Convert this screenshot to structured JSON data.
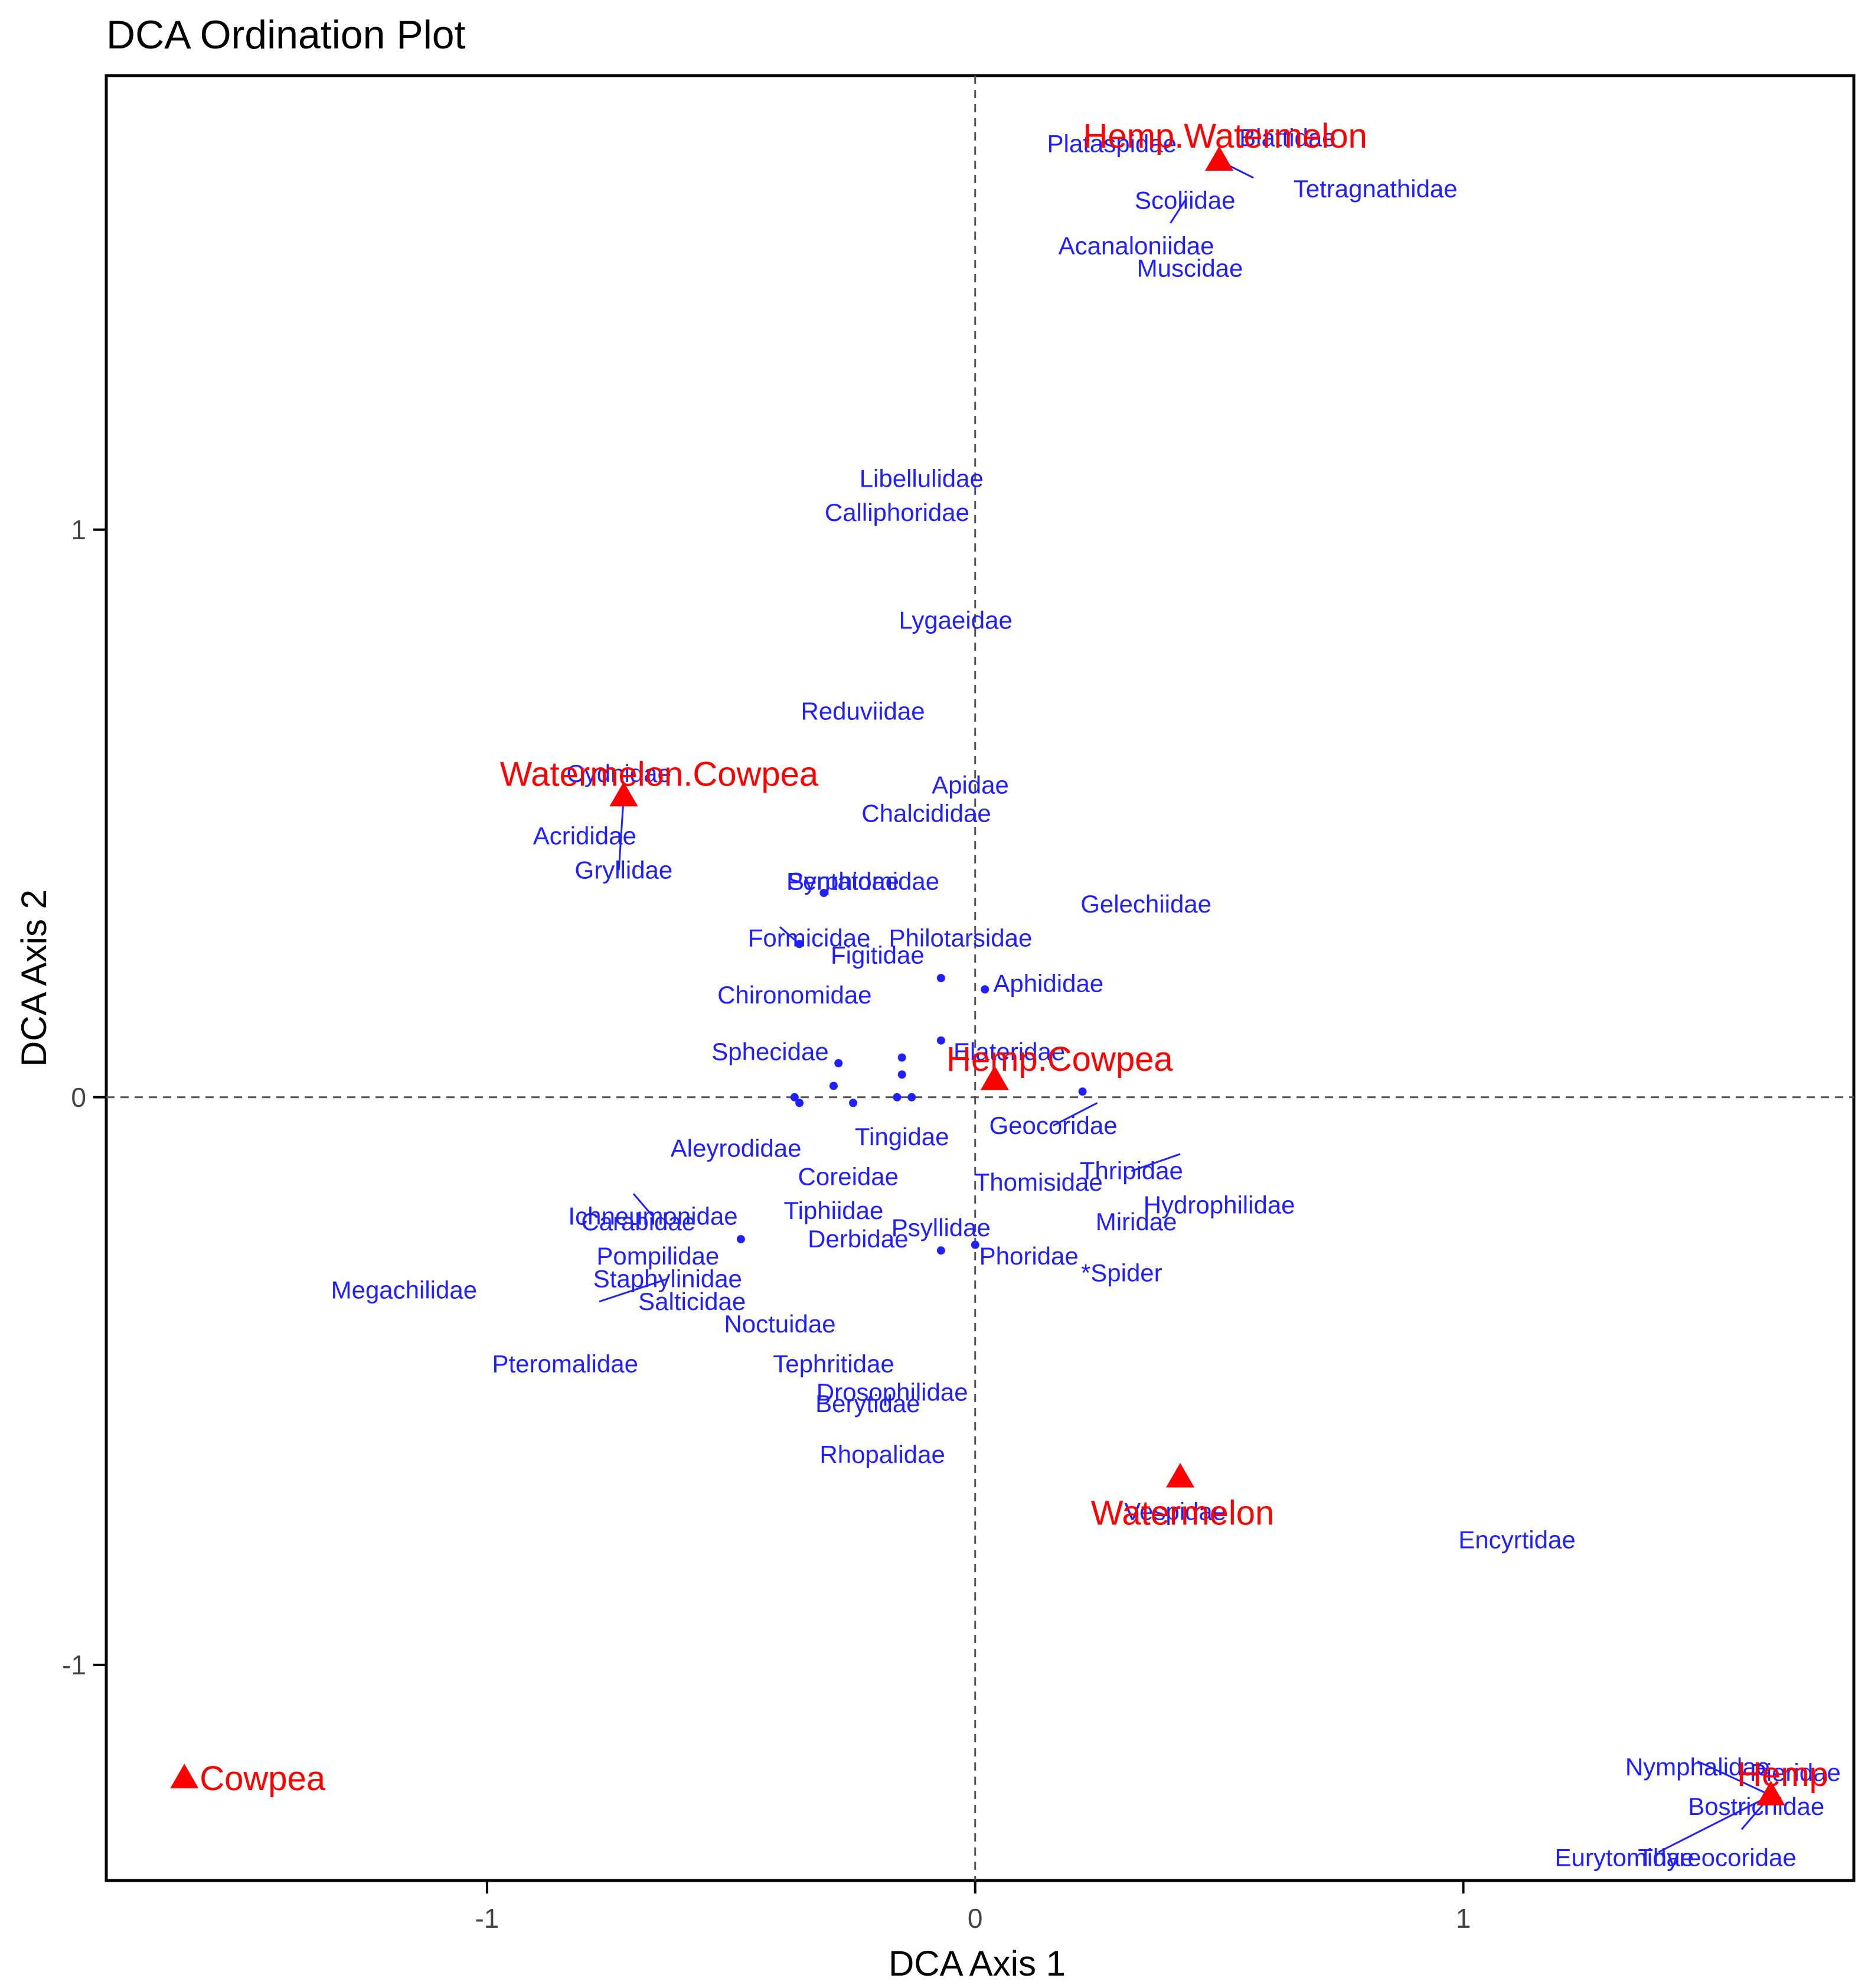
{
  "chart_data": {
    "type": "scatter",
    "title": "DCA Ordination Plot",
    "xlabel": "DCA Axis 1",
    "ylabel": "DCA Axis 2",
    "xlim": [
      -1.78,
      1.8
    ],
    "ylim": [
      -1.38,
      1.8
    ],
    "x_ticks": [
      -1,
      0,
      1
    ],
    "x_tick_labels": [
      "-1",
      "0",
      "1"
    ],
    "y_ticks": [
      -1,
      0,
      1
    ],
    "y_tick_labels": [
      "-1",
      "0",
      "1"
    ],
    "reference_lines": {
      "x": 0,
      "y": 0,
      "style": "dashed"
    },
    "colors": {
      "taxa": "#1f1fff",
      "sites": "#ff0000",
      "axes": "#000000",
      "reference": "#555555"
    },
    "sites": [
      {
        "label": "Hemp.Watermelon",
        "x": 0.5,
        "y": 1.65
      },
      {
        "label": "Watermelon.Cowpea",
        "x": -0.72,
        "y": 0.53
      },
      {
        "label": "Hemp.Cowpea",
        "x": 0.04,
        "y": 0.03
      },
      {
        "label": "Watermelon",
        "x": 0.42,
        "y": -0.67
      },
      {
        "label": "Cowpea",
        "x": -1.62,
        "y": -1.2
      },
      {
        "label": "Hemp",
        "x": 1.63,
        "y": -1.23
      }
    ],
    "taxa": [
      {
        "label": "Plataspidae",
        "x": 0.28,
        "y": 1.68
      },
      {
        "label": "Blattidae",
        "x": 0.64,
        "y": 1.69
      },
      {
        "label": "Tetragnathidae",
        "x": 0.82,
        "y": 1.6
      },
      {
        "label": "Scoliidae",
        "x": 0.43,
        "y": 1.58
      },
      {
        "label": "Acanaloniidae",
        "x": 0.33,
        "y": 1.5
      },
      {
        "label": "Muscidae",
        "x": 0.44,
        "y": 1.46
      },
      {
        "label": "Libellulidae",
        "x": -0.11,
        "y": 1.09
      },
      {
        "label": "Calliphoridae",
        "x": -0.16,
        "y": 1.03
      },
      {
        "label": "Lygaeidae",
        "x": -0.04,
        "y": 0.84
      },
      {
        "label": "Reduviidae",
        "x": -0.23,
        "y": 0.68
      },
      {
        "label": "Cydnidae",
        "x": -0.73,
        "y": 0.57
      },
      {
        "label": "Apidae",
        "x": -0.01,
        "y": 0.55
      },
      {
        "label": "Acrididae",
        "x": -0.8,
        "y": 0.46
      },
      {
        "label": "Chalcididae",
        "x": -0.1,
        "y": 0.5
      },
      {
        "label": "Gryllidae",
        "x": -0.72,
        "y": 0.4
      },
      {
        "label": "Syrphidae",
        "x": -0.27,
        "y": 0.38
      },
      {
        "label": "Pentatomidae",
        "x": -0.23,
        "y": 0.38
      },
      {
        "label": "Gelechiidae",
        "x": 0.35,
        "y": 0.34
      },
      {
        "label": "Formicidae",
        "x": -0.34,
        "y": 0.28
      },
      {
        "label": "Figitidae",
        "x": -0.2,
        "y": 0.25
      },
      {
        "label": "Philotarsidae",
        "x": -0.03,
        "y": 0.28
      },
      {
        "label": "Chironomidae",
        "x": -0.37,
        "y": 0.18
      },
      {
        "label": "Aphididae",
        "x": 0.15,
        "y": 0.2
      },
      {
        "label": "Sphecidae",
        "x": -0.42,
        "y": 0.08
      },
      {
        "label": "Elateridae",
        "x": 0.07,
        "y": 0.08
      },
      {
        "label": "Geocoridae",
        "x": 0.16,
        "y": -0.05
      },
      {
        "label": "Tingidae",
        "x": -0.15,
        "y": -0.07
      },
      {
        "label": "Aleyrodidae",
        "x": -0.49,
        "y": -0.09
      },
      {
        "label": "Thomisidae",
        "x": 0.13,
        "y": -0.15
      },
      {
        "label": "Thripidae",
        "x": 0.32,
        "y": -0.13
      },
      {
        "label": "Hydrophilidae",
        "x": 0.5,
        "y": -0.19
      },
      {
        "label": "Ichneumonidae",
        "x": -0.66,
        "y": -0.21
      },
      {
        "label": "Tiphiidae",
        "x": -0.29,
        "y": -0.2
      },
      {
        "label": "Coreidae",
        "x": -0.26,
        "y": -0.14
      },
      {
        "label": "Carabidae",
        "x": -0.69,
        "y": -0.22
      },
      {
        "label": "Derbidae",
        "x": -0.24,
        "y": -0.25
      },
      {
        "label": "Phoridae",
        "x": 0.11,
        "y": -0.28
      },
      {
        "label": "Miridae",
        "x": 0.33,
        "y": -0.22
      },
      {
        "label": "Megachilidae",
        "x": -1.17,
        "y": -0.34
      },
      {
        "label": "Pompilidae",
        "x": -0.65,
        "y": -0.28
      },
      {
        "label": "Staphylinidae",
        "x": -0.63,
        "y": -0.32
      },
      {
        "label": "Salticidae",
        "x": -0.58,
        "y": -0.36
      },
      {
        "label": "Noctuidae",
        "x": -0.4,
        "y": -0.4
      },
      {
        "label": "Psyllidae",
        "x": -0.07,
        "y": -0.23
      },
      {
        "label": "*Spider",
        "x": 0.3,
        "y": -0.31
      },
      {
        "label": "Pteromalidae",
        "x": -0.84,
        "y": -0.47
      },
      {
        "label": "Tephritidae",
        "x": -0.29,
        "y": -0.47
      },
      {
        "label": "Drosophilidae",
        "x": -0.17,
        "y": -0.52
      },
      {
        "label": "Berytidae",
        "x": -0.22,
        "y": -0.54
      },
      {
        "label": "Rhopalidae",
        "x": -0.19,
        "y": -0.63
      },
      {
        "label": "Vespidae",
        "x": 0.41,
        "y": -0.73
      },
      {
        "label": "Encyrtidae",
        "x": 1.11,
        "y": -0.78
      },
      {
        "label": "Nymphalidae",
        "x": 1.48,
        "y": -1.18
      },
      {
        "label": "Pieridae",
        "x": 1.68,
        "y": -1.19
      },
      {
        "label": "Bostrichidae",
        "x": 1.6,
        "y": -1.25
      },
      {
        "label": "Eurytomidae",
        "x": 1.33,
        "y": -1.34
      },
      {
        "label": "Thyreocoridae",
        "x": 1.52,
        "y": -1.34
      }
    ],
    "unlabeled_points": [
      {
        "x": -0.31,
        "y": 0.36
      },
      {
        "x": -0.36,
        "y": 0.27
      },
      {
        "x": -0.07,
        "y": 0.1
      },
      {
        "x": -0.15,
        "y": 0.07
      },
      {
        "x": -0.15,
        "y": 0.04
      },
      {
        "x": -0.28,
        "y": 0.06
      },
      {
        "x": -0.29,
        "y": 0.02
      },
      {
        "x": -0.37,
        "y": 0.0
      },
      {
        "x": -0.25,
        "y": -0.01
      },
      {
        "x": -0.13,
        "y": 0.0
      },
      {
        "x": -0.07,
        "y": -0.27
      },
      {
        "x": 0.0,
        "y": -0.26
      },
      {
        "x": 0.02,
        "y": 0.19
      },
      {
        "x": -0.07,
        "y": 0.21
      },
      {
        "x": -0.36,
        "y": -0.01
      },
      {
        "x": 0.22,
        "y": 0.01
      },
      {
        "x": -0.16,
        "y": 0.0
      },
      {
        "x": -0.48,
        "y": -0.25
      }
    ],
    "leader_lines": [
      {
        "from": [
          0.5,
          1.65
        ],
        "to": [
          0.57,
          1.62
        ]
      },
      {
        "from": [
          0.43,
          1.58
        ],
        "to": [
          0.4,
          1.54
        ]
      },
      {
        "from": [
          -0.72,
          0.53
        ],
        "to": [
          -0.73,
          0.4
        ]
      },
      {
        "from": [
          -0.36,
          0.27
        ],
        "to": [
          -0.4,
          0.3
        ]
      },
      {
        "from": [
          0.16,
          -0.05
        ],
        "to": [
          0.25,
          -0.01
        ]
      },
      {
        "from": [
          0.32,
          -0.13
        ],
        "to": [
          0.42,
          -0.1
        ]
      },
      {
        "from": [
          -0.66,
          -0.21
        ],
        "to": [
          -0.7,
          -0.17
        ]
      },
      {
        "from": [
          -0.63,
          -0.32
        ],
        "to": [
          -0.77,
          -0.36
        ]
      },
      {
        "from": [
          1.63,
          -1.23
        ],
        "to": [
          1.48,
          -1.17
        ]
      },
      {
        "from": [
          1.63,
          -1.23
        ],
        "to": [
          1.4,
          -1.33
        ]
      },
      {
        "from": [
          1.63,
          -1.23
        ],
        "to": [
          1.57,
          -1.29
        ]
      }
    ]
  }
}
